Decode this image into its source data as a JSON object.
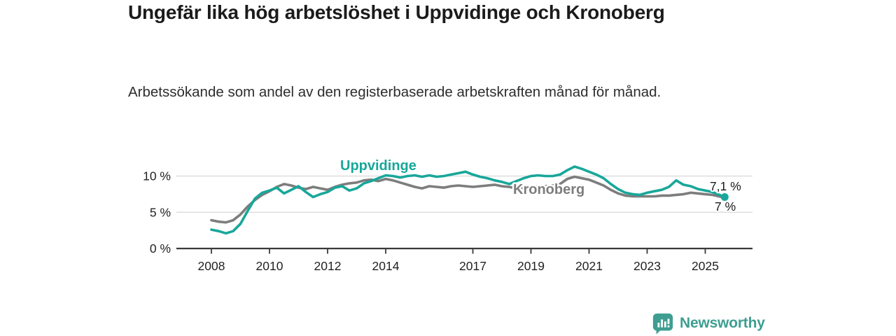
{
  "title": "Ungefär lika hög arbetslöshet i Uppvidinge och Kronoberg",
  "subtitle": "Arbetssökande som andel av den registerbaserade arbetskraften månad för månad.",
  "footer": {
    "brand": "Newsworthy",
    "logo_icon": "speech-bubble-bar-chart-icon"
  },
  "colors": {
    "accent_teal": "#18a79a",
    "series_gray": "#7d7d7d",
    "text_dark": "#1b1b1b",
    "grid": "#d8d8d8",
    "axis": "#3a3a3a",
    "brand_teal": "#3d9e91"
  },
  "chart_data": {
    "type": "line",
    "title": "Ungefär lika hög arbetslöshet i Uppvidinge och Kronoberg",
    "xlabel": "",
    "ylabel": "",
    "xlim": [
      2008,
      2025.67
    ],
    "ylim": [
      0,
      14
    ],
    "grid": "horizontal",
    "legend_position": "inline-labels",
    "xticks": [
      2008,
      2010,
      2012,
      2014,
      2017,
      2019,
      2021,
      2023,
      2025
    ],
    "yticks": [
      {
        "value": 0,
        "label": "0 %"
      },
      {
        "value": 5,
        "label": "5 %"
      },
      {
        "value": 10,
        "label": "10 %"
      }
    ],
    "x": [
      2008,
      2008.25,
      2008.5,
      2008.75,
      2009,
      2009.25,
      2009.5,
      2009.75,
      2010,
      2010.25,
      2010.5,
      2010.75,
      2011,
      2011.25,
      2011.5,
      2011.75,
      2012,
      2012.25,
      2012.5,
      2012.75,
      2013,
      2013.25,
      2013.5,
      2013.75,
      2014,
      2014.25,
      2014.5,
      2014.75,
      2015,
      2015.25,
      2015.5,
      2015.75,
      2016,
      2016.25,
      2016.5,
      2016.75,
      2017,
      2017.25,
      2017.5,
      2017.75,
      2018,
      2018.25,
      2018.5,
      2018.75,
      2019,
      2019.25,
      2019.5,
      2019.75,
      2020,
      2020.25,
      2020.5,
      2020.75,
      2021,
      2021.25,
      2021.5,
      2021.75,
      2022,
      2022.25,
      2022.5,
      2022.75,
      2023,
      2023.25,
      2023.5,
      2023.75,
      2024,
      2024.25,
      2024.5,
      2024.75,
      2025,
      2025.25,
      2025.67
    ],
    "series": [
      {
        "name": "Uppvidinge",
        "color": "#18a79a",
        "end_label": "7,1 %",
        "end_dot": true,
        "values": [
          2.6,
          2.4,
          2.1,
          2.4,
          3.4,
          5.2,
          6.9,
          7.7,
          8.0,
          8.4,
          7.6,
          8.1,
          8.6,
          7.8,
          7.1,
          7.5,
          7.8,
          8.4,
          8.6,
          8.0,
          8.3,
          9.0,
          9.3,
          9.7,
          10.1,
          10.0,
          9.8,
          10.0,
          10.1,
          9.9,
          10.1,
          9.9,
          10.0,
          10.2,
          10.4,
          10.6,
          10.2,
          9.9,
          9.7,
          9.4,
          9.2,
          8.9,
          9.3,
          9.7,
          10.0,
          10.1,
          10.0,
          10.0,
          10.2,
          10.8,
          11.3,
          11.0,
          10.6,
          10.2,
          9.7,
          8.9,
          8.2,
          7.7,
          7.5,
          7.4,
          7.7,
          7.9,
          8.1,
          8.5,
          9.4,
          8.8,
          8.6,
          8.2,
          8.0,
          7.8,
          7.1
        ]
      },
      {
        "name": "Kronoberg",
        "color": "#7d7d7d",
        "end_label": "7 %",
        "end_dot": false,
        "values": [
          3.9,
          3.7,
          3.6,
          3.9,
          4.7,
          5.8,
          6.7,
          7.4,
          7.9,
          8.5,
          8.9,
          8.7,
          8.4,
          8.2,
          8.5,
          8.3,
          8.1,
          8.5,
          8.8,
          9.0,
          9.1,
          9.4,
          9.5,
          9.3,
          9.6,
          9.4,
          9.1,
          8.8,
          8.5,
          8.3,
          8.6,
          8.5,
          8.4,
          8.6,
          8.7,
          8.6,
          8.5,
          8.6,
          8.7,
          8.8,
          8.6,
          8.5,
          8.3,
          8.4,
          8.5,
          8.6,
          8.6,
          8.7,
          8.9,
          9.6,
          9.9,
          9.7,
          9.5,
          9.1,
          8.7,
          8.1,
          7.6,
          7.3,
          7.2,
          7.2,
          7.2,
          7.2,
          7.3,
          7.3,
          7.4,
          7.5,
          7.7,
          7.6,
          7.5,
          7.4,
          7.0
        ]
      }
    ]
  }
}
